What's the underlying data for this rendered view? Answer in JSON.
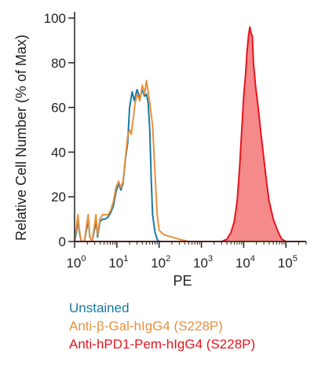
{
  "chart_data": {
    "type": "area",
    "xlabel": "PE",
    "ylabel": "Relative Cell Number (% of Max)",
    "xscale": "log",
    "xlim": [
      1,
      300000
    ],
    "ylim": [
      0,
      100
    ],
    "x_ticks": [
      {
        "base": "10",
        "exp": "0",
        "value": 1
      },
      {
        "base": "10",
        "exp": "1",
        "value": 10
      },
      {
        "base": "10",
        "exp": "2",
        "value": 100
      },
      {
        "base": "10",
        "exp": "3",
        "value": 1000
      },
      {
        "base": "10",
        "exp": "4",
        "value": 10000
      },
      {
        "base": "10",
        "exp": "5",
        "value": 100000
      }
    ],
    "y_ticks": [
      "0",
      "20",
      "40",
      "60",
      "80",
      "100"
    ],
    "grid": false,
    "legend_position": "bottom-left",
    "series": [
      {
        "name": "Unstained",
        "color": "#1a7aa4",
        "fill": false,
        "points": [
          [
            1,
            0
          ],
          [
            1.1,
            4
          ],
          [
            1.2,
            10
          ],
          [
            1.3,
            4
          ],
          [
            1.45,
            0
          ],
          [
            1.7,
            0
          ],
          [
            1.95,
            6
          ],
          [
            2.1,
            10
          ],
          [
            2.3,
            2
          ],
          [
            2.6,
            0
          ],
          [
            3,
            6
          ],
          [
            3.2,
            10
          ],
          [
            3.5,
            2
          ],
          [
            4,
            9
          ],
          [
            4.6,
            10
          ],
          [
            5.3,
            10
          ],
          [
            6.2,
            11
          ],
          [
            7.2,
            13
          ],
          [
            8.3,
            16
          ],
          [
            9.5,
            22
          ],
          [
            11,
            26
          ],
          [
            12.5,
            23
          ],
          [
            14,
            26
          ],
          [
            16,
            37
          ],
          [
            18,
            44
          ],
          [
            20,
            60
          ],
          [
            23,
            67
          ],
          [
            26,
            63
          ],
          [
            30,
            68
          ],
          [
            35,
            64
          ],
          [
            40,
            68
          ],
          [
            45,
            65
          ],
          [
            50,
            66
          ],
          [
            55,
            62
          ],
          [
            60,
            50
          ],
          [
            65,
            28
          ],
          [
            70,
            12
          ],
          [
            80,
            4
          ],
          [
            90,
            1
          ],
          [
            100,
            0
          ],
          [
            300000,
            0
          ]
        ]
      },
      {
        "name": "Anti-β-Gal-hIgG4 (S228P)",
        "color": "#e8913c",
        "fill": false,
        "points": [
          [
            1,
            0
          ],
          [
            1.1,
            6
          ],
          [
            1.2,
            12
          ],
          [
            1.3,
            5
          ],
          [
            1.45,
            0
          ],
          [
            1.7,
            0
          ],
          [
            1.95,
            8
          ],
          [
            2.1,
            12
          ],
          [
            2.3,
            2
          ],
          [
            2.6,
            0
          ],
          [
            3,
            8
          ],
          [
            3.2,
            12
          ],
          [
            3.5,
            3
          ],
          [
            4,
            10
          ],
          [
            4.6,
            12
          ],
          [
            5.3,
            12
          ],
          [
            6.2,
            12
          ],
          [
            7.2,
            14
          ],
          [
            8.3,
            18
          ],
          [
            9.5,
            24
          ],
          [
            11,
            27
          ],
          [
            12.5,
            24
          ],
          [
            14,
            27
          ],
          [
            16,
            38
          ],
          [
            18,
            47
          ],
          [
            20,
            50
          ],
          [
            22,
            48
          ],
          [
            24,
            54
          ],
          [
            27,
            62
          ],
          [
            30,
            66
          ],
          [
            35,
            63
          ],
          [
            40,
            70
          ],
          [
            45,
            66
          ],
          [
            50,
            72
          ],
          [
            55,
            67
          ],
          [
            60,
            62
          ],
          [
            70,
            52
          ],
          [
            80,
            30
          ],
          [
            90,
            12
          ],
          [
            100,
            5
          ],
          [
            130,
            3
          ],
          [
            200,
            2
          ],
          [
            300,
            1
          ],
          [
            500,
            0
          ],
          [
            300000,
            0
          ]
        ]
      },
      {
        "name": "Anti-hPD1-Pem-hIgG4 (S228P)",
        "color": "#e8141e",
        "fill": true,
        "fill_color": "#f58a8a",
        "points": [
          [
            1,
            0
          ],
          [
            3000,
            0
          ],
          [
            4000,
            1
          ],
          [
            5000,
            4
          ],
          [
            6000,
            9
          ],
          [
            7000,
            18
          ],
          [
            8000,
            33
          ],
          [
            9000,
            50
          ],
          [
            10000,
            65
          ],
          [
            11000,
            74
          ],
          [
            12000,
            85
          ],
          [
            13000,
            92
          ],
          [
            14000,
            96
          ],
          [
            15000,
            93
          ],
          [
            16000,
            92
          ],
          [
            17000,
            80
          ],
          [
            19000,
            70
          ],
          [
            22000,
            60
          ],
          [
            25000,
            50
          ],
          [
            30000,
            37
          ],
          [
            35000,
            26
          ],
          [
            40000,
            18
          ],
          [
            50000,
            10
          ],
          [
            60000,
            6
          ],
          [
            70000,
            3
          ],
          [
            80000,
            1
          ],
          [
            100000,
            0
          ],
          [
            300000,
            0
          ]
        ]
      }
    ]
  }
}
